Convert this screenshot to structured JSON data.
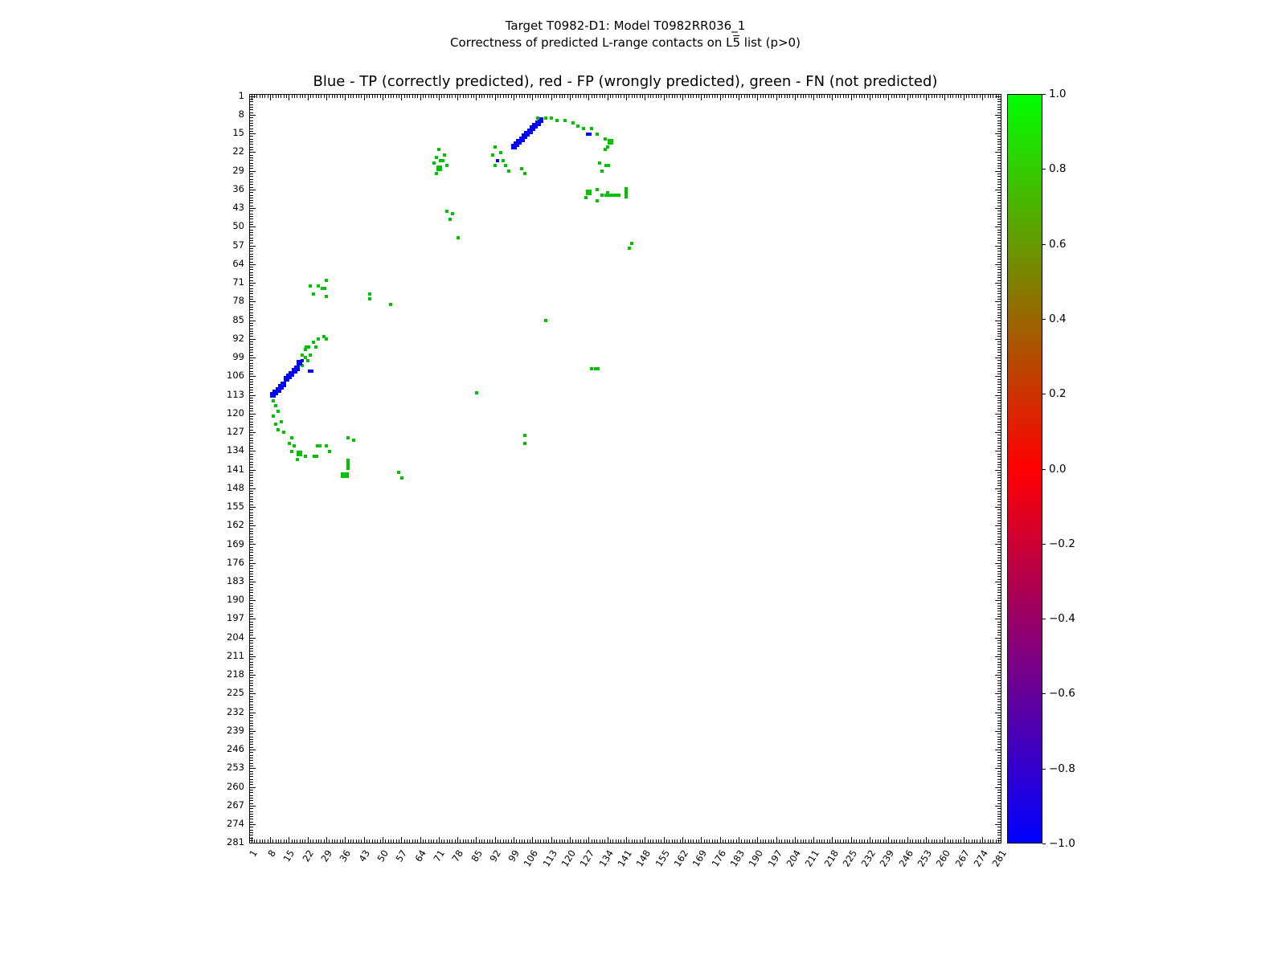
{
  "figure": {
    "title_line1": "Target T0982-D1: Model T0982RR036_1",
    "title_line2": "Correctness of predicted L-range contacts on L5̅ list (p>0)",
    "axes_title": "Blue - TP (correctly predicted), red - FP (wrongly predicted), green - FN (not predicted)"
  },
  "axis": {
    "min": 1,
    "max": 281,
    "major_step": 7,
    "tick_labels": [
      "1",
      "8",
      "15",
      "22",
      "29",
      "36",
      "43",
      "50",
      "57",
      "64",
      "71",
      "78",
      "85",
      "92",
      "99",
      "106",
      "113",
      "120",
      "127",
      "134",
      "141",
      "148",
      "155",
      "162",
      "169",
      "176",
      "183",
      "190",
      "197",
      "204",
      "211",
      "218",
      "225",
      "232",
      "239",
      "246",
      "253",
      "260",
      "267",
      "274",
      "281"
    ]
  },
  "colorbar": {
    "value_min": -1.0,
    "value_max": 1.0,
    "tick_labels": [
      "1.0",
      "0.8",
      "0.6",
      "0.4",
      "0.2",
      "0.0",
      "−0.2",
      "−0.4",
      "−0.6",
      "−0.8",
      "−1.0"
    ],
    "colors": {
      "low": "#0000ff",
      "mid": "#ff0000",
      "high": "#00ff00"
    }
  },
  "chart_data": {
    "type": "heatmap",
    "title": "Blue - TP (correctly predicted), red - FP (wrongly predicted), green - FN (not predicted)",
    "x_range": [
      1,
      281
    ],
    "y_range": [
      1,
      281
    ],
    "grid": false,
    "legend": {
      "TP": "correctly predicted (blue, value -1)",
      "FP": "wrongly predicted (red, value 0)",
      "FN": "not predicted (green, value +1)"
    },
    "point_colors": {
      "tp": "#0000ff",
      "fp": "#ff0000",
      "fn": "#00c300"
    },
    "points": [
      [
        99,
        20,
        "tp",
        2,
        2
      ],
      [
        100,
        19,
        "tp",
        2,
        2
      ],
      [
        101,
        18,
        "tp",
        2,
        2
      ],
      [
        102,
        17,
        "tp",
        2,
        2
      ],
      [
        103,
        16,
        "tp",
        2,
        2
      ],
      [
        104,
        15,
        "tp",
        2,
        2
      ],
      [
        105,
        14,
        "tp",
        2,
        2
      ],
      [
        106,
        13,
        "tp",
        2,
        2
      ],
      [
        107,
        12,
        "tp",
        2,
        2
      ],
      [
        108,
        11,
        "tp",
        2,
        2
      ],
      [
        109,
        10,
        "tp",
        2,
        2
      ],
      [
        127,
        15,
        "tp",
        2,
        1
      ],
      [
        108,
        9,
        "fn"
      ],
      [
        111,
        9,
        "fn"
      ],
      [
        113,
        9,
        "fn"
      ],
      [
        115,
        10,
        "fn"
      ],
      [
        118,
        10,
        "fn"
      ],
      [
        121,
        11,
        "fn"
      ],
      [
        123,
        12,
        "fn"
      ],
      [
        125,
        13,
        "fn"
      ],
      [
        128,
        13,
        "fn"
      ],
      [
        130,
        15,
        "fn"
      ],
      [
        133,
        17,
        "fn"
      ],
      [
        135,
        18,
        "fn",
        2,
        2
      ],
      [
        134,
        20,
        "fn"
      ],
      [
        133,
        21,
        "fn"
      ],
      [
        92,
        20,
        "fn"
      ],
      [
        94,
        22,
        "fn"
      ],
      [
        91,
        23,
        "fn"
      ],
      [
        93,
        25,
        "tp"
      ],
      [
        95,
        25,
        "fn"
      ],
      [
        92,
        27,
        "fn"
      ],
      [
        96,
        27,
        "fn"
      ],
      [
        97,
        29,
        "fn"
      ],
      [
        102,
        28,
        "fn"
      ],
      [
        103,
        30,
        "fn"
      ],
      [
        71,
        21,
        "fn"
      ],
      [
        73,
        23,
        "fn"
      ],
      [
        70,
        24,
        "fn"
      ],
      [
        72,
        25,
        "fn",
        2,
        1
      ],
      [
        69,
        26,
        "fn"
      ],
      [
        74,
        27,
        "fn"
      ],
      [
        71,
        28,
        "fn",
        2,
        2
      ],
      [
        70,
        30,
        "fn"
      ],
      [
        131,
        26,
        "fn"
      ],
      [
        134,
        27,
        "fn",
        2,
        1
      ],
      [
        132,
        29,
        "fn"
      ],
      [
        127,
        37,
        "fn",
        2,
        2
      ],
      [
        130,
        36,
        "fn"
      ],
      [
        132,
        38,
        "fn"
      ],
      [
        134,
        37,
        "fn"
      ],
      [
        136,
        38,
        "fn",
        6,
        1
      ],
      [
        141,
        37,
        "fn",
        1,
        4
      ],
      [
        126,
        39,
        "fn"
      ],
      [
        130,
        40,
        "fn"
      ],
      [
        74,
        44,
        "fn"
      ],
      [
        76,
        45,
        "fn"
      ],
      [
        75,
        47,
        "fn"
      ],
      [
        78,
        54,
        "fn"
      ],
      [
        143,
        56,
        "fn"
      ],
      [
        142,
        58,
        "fn"
      ],
      [
        29,
        70,
        "fn"
      ],
      [
        23,
        72,
        "fn"
      ],
      [
        26,
        72,
        "fn"
      ],
      [
        28,
        73,
        "fn",
        2,
        1
      ],
      [
        24,
        75,
        "fn"
      ],
      [
        29,
        76,
        "fn"
      ],
      [
        45,
        75,
        "fn"
      ],
      [
        45,
        77,
        "fn"
      ],
      [
        53,
        79,
        "fn"
      ],
      [
        111,
        85,
        "fn"
      ],
      [
        28,
        91,
        "fn"
      ],
      [
        26,
        92,
        "fn"
      ],
      [
        29,
        92,
        "fn"
      ],
      [
        24,
        93,
        "fn"
      ],
      [
        22,
        95,
        "fn",
        2,
        1
      ],
      [
        25,
        95,
        "fn"
      ],
      [
        21,
        96,
        "fn"
      ],
      [
        20,
        98,
        "fn"
      ],
      [
        23,
        98,
        "fn"
      ],
      [
        21,
        99,
        "fn"
      ],
      [
        22,
        100,
        "fn"
      ],
      [
        20,
        102,
        "fn"
      ],
      [
        20,
        100,
        "tp"
      ],
      [
        19,
        101,
        "tp",
        2,
        2
      ],
      [
        18,
        103,
        "tp",
        2,
        2
      ],
      [
        17,
        104,
        "tp",
        2,
        2
      ],
      [
        16,
        105,
        "tp",
        2,
        2
      ],
      [
        15,
        106,
        "tp",
        2,
        2
      ],
      [
        14,
        107,
        "tp",
        2,
        2
      ],
      [
        13,
        109,
        "tp",
        2,
        2
      ],
      [
        12,
        110,
        "tp",
        2,
        2
      ],
      [
        11,
        111,
        "tp",
        2,
        2
      ],
      [
        10,
        112,
        "tp",
        2,
        2
      ],
      [
        9,
        113,
        "tp",
        2,
        2
      ],
      [
        23,
        104,
        "tp",
        2,
        1
      ],
      [
        9,
        115,
        "fn"
      ],
      [
        10,
        117,
        "fn"
      ],
      [
        11,
        119,
        "fn"
      ],
      [
        9,
        121,
        "fn"
      ],
      [
        12,
        123,
        "fn"
      ],
      [
        10,
        124,
        "fn"
      ],
      [
        11,
        126,
        "fn"
      ],
      [
        13,
        127,
        "fn"
      ],
      [
        16,
        129,
        "fn"
      ],
      [
        15,
        131,
        "fn"
      ],
      [
        17,
        132,
        "fn"
      ],
      [
        16,
        134,
        "fn"
      ],
      [
        19,
        135,
        "fn",
        2,
        2
      ],
      [
        21,
        136,
        "fn"
      ],
      [
        18,
        137,
        "fn"
      ],
      [
        26,
        132,
        "fn",
        2,
        1
      ],
      [
        29,
        132,
        "fn"
      ],
      [
        30,
        134,
        "fn"
      ],
      [
        25,
        136,
        "fn",
        2,
        1
      ],
      [
        37,
        129,
        "fn"
      ],
      [
        39,
        130,
        "fn"
      ],
      [
        37,
        139,
        "fn",
        1,
        4
      ],
      [
        36,
        143,
        "fn",
        3,
        2
      ],
      [
        56,
        142,
        "fn"
      ],
      [
        57,
        144,
        "fn"
      ],
      [
        85,
        112,
        "fn"
      ],
      [
        103,
        128,
        "fn"
      ],
      [
        103,
        131,
        "fn"
      ],
      [
        128,
        103,
        "fn"
      ],
      [
        130,
        103,
        "fn",
        2,
        1
      ]
    ]
  }
}
